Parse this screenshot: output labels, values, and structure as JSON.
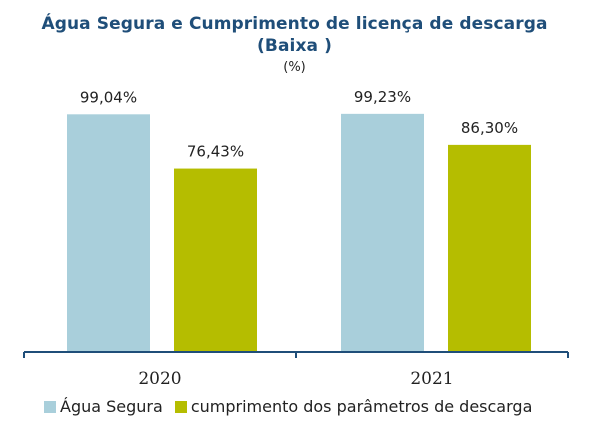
{
  "chart_data": {
    "type": "bar",
    "title": "Água  Segura e Cumprimento de licença de descarga",
    "subtitle": "(Baixa )",
    "unit": "(%)",
    "categories": [
      "2020",
      "2021"
    ],
    "series": [
      {
        "name": "Água Segura",
        "values": [
          99.04,
          99.23
        ],
        "labels": [
          "99,04%",
          "99,23%"
        ],
        "color": "#a9cfdb"
      },
      {
        "name": "cumprimento dos parâmetros de descarga",
        "values": [
          76.43,
          86.3
        ],
        "labels": [
          "76,43%",
          "86,30%"
        ],
        "color": "#b5bd00"
      }
    ],
    "ylim": [
      0,
      100
    ],
    "axis_color": "#1f4e79",
    "grid": false,
    "legend_position": "bottom"
  }
}
